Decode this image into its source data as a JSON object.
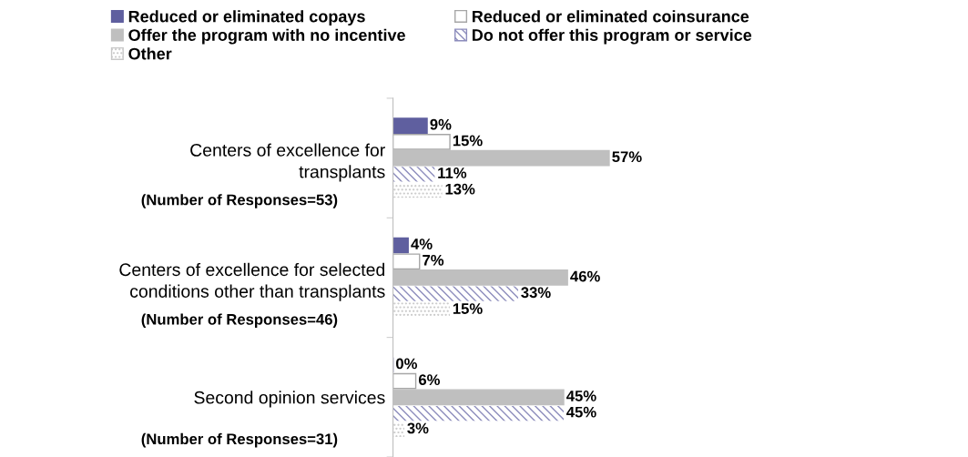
{
  "chart_data": {
    "type": "bar",
    "orientation": "horizontal",
    "legend": "top",
    "grid": false,
    "categories": [
      "Centers of excellence for\ntransplants",
      "Centers of excellence for selected\nconditions other than transplants",
      "Second opinion services"
    ],
    "annotations": [
      "(Number of Responses=53)",
      "(Number of Responses=46)",
      "(Number of Responses=31)"
    ],
    "series": [
      {
        "name": "Reduced or eliminated copays",
        "color": "#5f5f9f",
        "values": [
          9,
          4,
          0
        ],
        "value_labels": [
          "9%",
          "4%",
          "0%"
        ]
      },
      {
        "name": "Reduced or eliminated coinsurance",
        "color": "#ffffff",
        "values": [
          15,
          7,
          6
        ],
        "value_labels": [
          "15%",
          "7%",
          "6%"
        ]
      },
      {
        "name": "Offer the program with no incentive",
        "color": "#bfbfbf",
        "values": [
          57,
          46,
          45
        ],
        "value_labels": [
          "57%",
          "46%",
          "45%"
        ]
      },
      {
        "name": "Do not offer this program or service",
        "color": "#8c8cbc",
        "values": [
          11,
          33,
          45
        ],
        "value_labels": [
          "11%",
          "33%",
          "45%"
        ]
      },
      {
        "name": "Other",
        "color": "#c8c8c8",
        "values": [
          13,
          15,
          3
        ],
        "value_labels": [
          "13%",
          "15%",
          "3%"
        ]
      }
    ]
  }
}
